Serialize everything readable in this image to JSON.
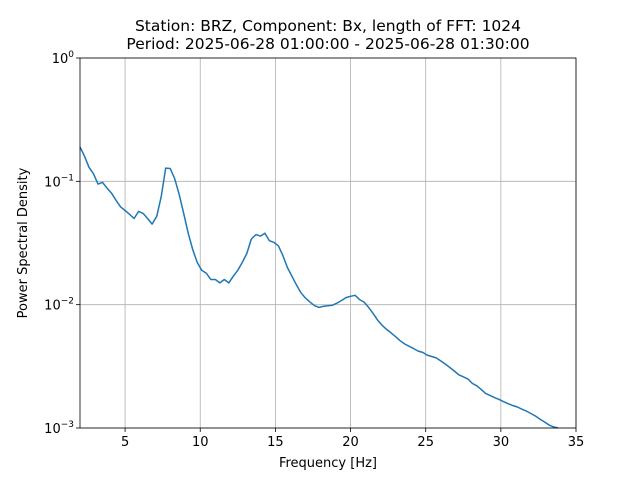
{
  "chart_data": {
    "type": "line",
    "title_line1": "Station: BRZ, Component: Bx, length of FFT: 1024",
    "title_line2": "Period: 2025-06-28 01:00:00 - 2025-06-28 01:30:00",
    "xlabel": "Frequency [Hz]",
    "ylabel": "Power Spectral Density",
    "xlim": [
      2,
      35
    ],
    "ylim": [
      0.001,
      1
    ],
    "yscale": "log",
    "grid": true,
    "x_ticks": [
      5,
      10,
      15,
      20,
      25,
      30,
      35
    ],
    "x_tick_labels": [
      "5",
      "10",
      "15",
      "20",
      "25",
      "30",
      "35"
    ],
    "y_ticks": [
      0.001,
      0.01,
      0.1,
      1
    ],
    "y_tick_labels": [
      {
        "base": "10",
        "exp": "−3"
      },
      {
        "base": "10",
        "exp": "−2"
      },
      {
        "base": "10",
        "exp": "−1"
      },
      {
        "base": "10",
        "exp": "0"
      }
    ],
    "series": [
      {
        "color": "#1f77b4",
        "x": [
          2.0,
          2.3,
          2.6,
          2.9,
          3.2,
          3.5,
          3.8,
          4.1,
          4.4,
          4.7,
          5.0,
          5.3,
          5.6,
          5.9,
          6.2,
          6.5,
          6.8,
          7.1,
          7.4,
          7.7,
          8.0,
          8.3,
          8.6,
          8.9,
          9.2,
          9.5,
          9.8,
          10.1,
          10.4,
          10.7,
          11.0,
          11.3,
          11.6,
          11.9,
          12.2,
          12.5,
          12.8,
          13.1,
          13.4,
          13.7,
          14.0,
          14.3,
          14.6,
          14.9,
          15.2,
          15.5,
          15.8,
          16.1,
          16.4,
          16.7,
          17.0,
          17.3,
          17.6,
          17.9,
          18.2,
          18.5,
          18.8,
          19.1,
          19.4,
          19.7,
          20.0,
          20.3,
          20.6,
          20.9,
          21.2,
          21.5,
          21.8,
          22.1,
          22.4,
          22.7,
          23.0,
          23.3,
          23.6,
          23.9,
          24.2,
          24.5,
          24.8,
          25.1,
          25.4,
          25.7,
          26.0,
          26.3,
          26.6,
          26.9,
          27.2,
          27.5,
          27.8,
          28.1,
          28.4,
          28.7,
          29.0,
          29.3,
          29.6,
          29.9,
          30.2,
          30.5,
          30.8,
          31.1,
          31.4,
          31.7,
          32.0,
          32.3,
          32.6,
          32.9,
          33.2,
          33.5,
          33.8
        ],
        "y": [
          0.19,
          0.16,
          0.13,
          0.115,
          0.095,
          0.098,
          0.088,
          0.08,
          0.07,
          0.062,
          0.058,
          0.054,
          0.05,
          0.057,
          0.055,
          0.05,
          0.045,
          0.052,
          0.075,
          0.128,
          0.127,
          0.105,
          0.078,
          0.055,
          0.038,
          0.028,
          0.022,
          0.019,
          0.018,
          0.016,
          0.016,
          0.015,
          0.016,
          0.015,
          0.017,
          0.019,
          0.022,
          0.026,
          0.034,
          0.037,
          0.036,
          0.038,
          0.033,
          0.032,
          0.03,
          0.025,
          0.02,
          0.017,
          0.0145,
          0.0125,
          0.0113,
          0.0105,
          0.0098,
          0.0095,
          0.0097,
          0.0098,
          0.0099,
          0.0103,
          0.0108,
          0.0114,
          0.0117,
          0.0119,
          0.011,
          0.0105,
          0.0095,
          0.0085,
          0.0075,
          0.0068,
          0.0063,
          0.0059,
          0.0055,
          0.0051,
          0.0048,
          0.0046,
          0.0044,
          0.0042,
          0.0041,
          0.0039,
          0.0038,
          0.0037,
          0.0035,
          0.0033,
          0.0031,
          0.0029,
          0.0027,
          0.0026,
          0.0025,
          0.0023,
          0.0022,
          0.00205,
          0.0019,
          0.00183,
          0.00176,
          0.0017,
          0.00163,
          0.00157,
          0.00152,
          0.00148,
          0.00142,
          0.00137,
          0.00131,
          0.00125,
          0.00118,
          0.00112,
          0.00106,
          0.00102,
          0.00099
        ]
      }
    ]
  }
}
